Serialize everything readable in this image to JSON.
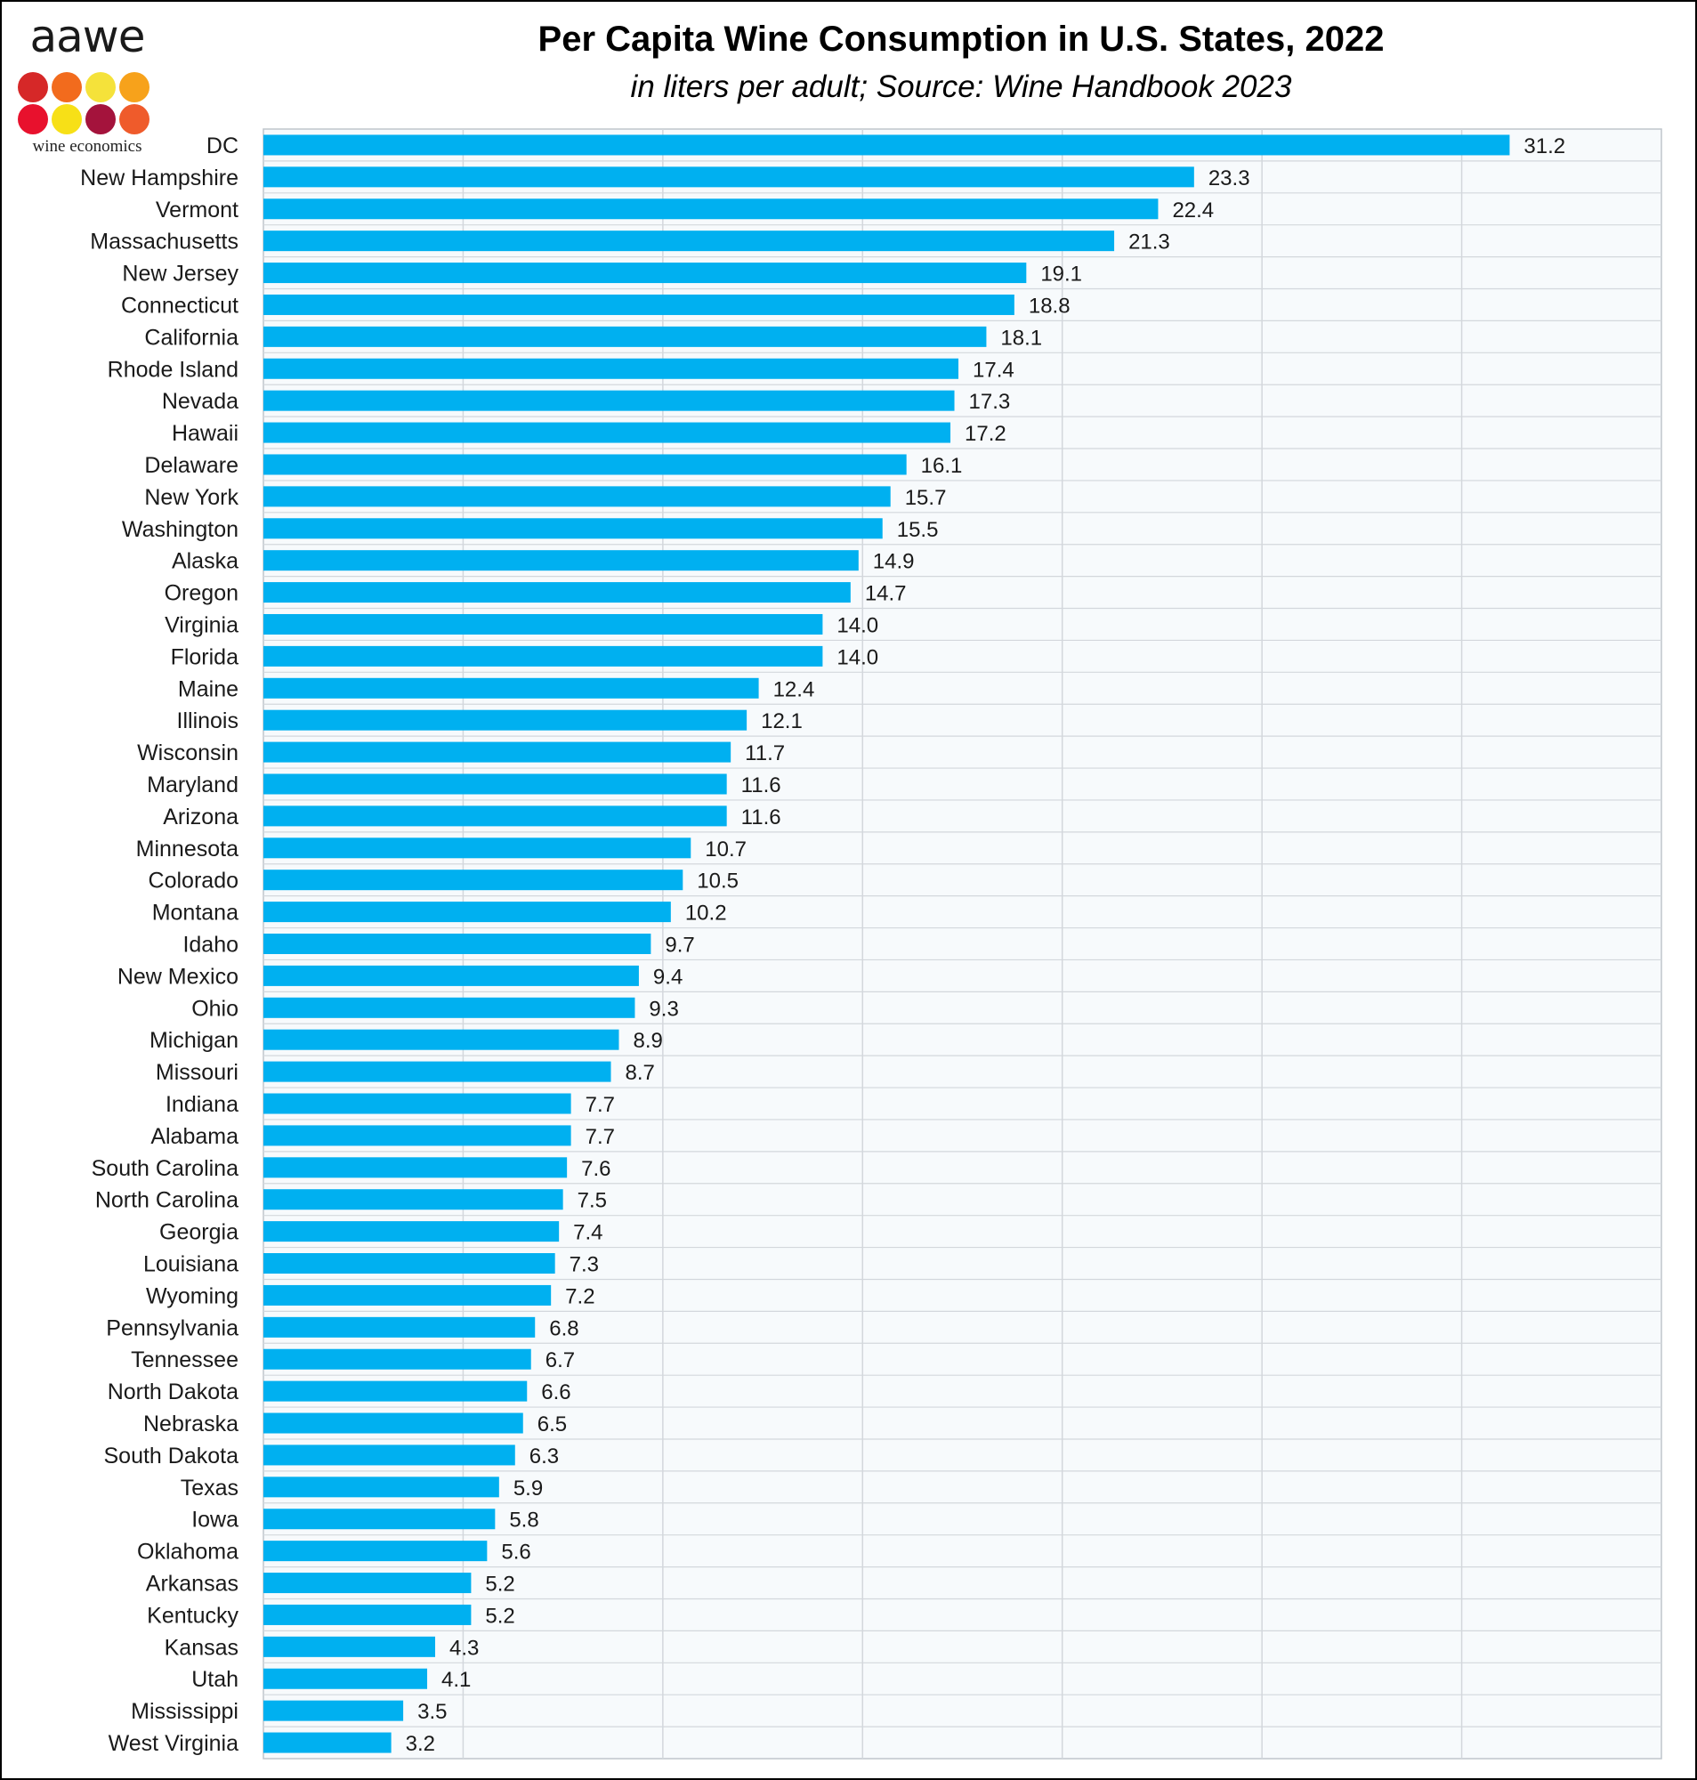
{
  "logo": {
    "wordmark": "aawe",
    "tagline": "wine economics",
    "dot_colors": [
      "#d62828",
      "#f26b1d",
      "#f5e23a",
      "#f7a21b",
      "#e8112d",
      "#f7e017",
      "#a4133c",
      "#ef5b2b"
    ]
  },
  "colors": {
    "bar": "#00b0f0",
    "plot_bg": "#f7fafc",
    "grid": "#d3d7dc",
    "plot_border": "#bfc5cc"
  },
  "chart_data": {
    "type": "bar",
    "orientation": "horizontal",
    "title": "Per Capita Wine Consumption in U.S. States, 2022",
    "subtitle": "in liters per adult; Source: Wine Handbook 2023",
    "xlabel": "",
    "ylabel": "",
    "xlim": [
      0,
      35
    ],
    "grid": true,
    "legend": "none",
    "categories": [
      "DC",
      "New Hampshire",
      "Vermont",
      "Massachusetts",
      "New Jersey",
      "Connecticut",
      "California",
      "Rhode Island",
      "Nevada",
      "Hawaii",
      "Delaware",
      "New York",
      "Washington",
      "Alaska",
      "Oregon",
      "Virginia",
      "Florida",
      "Maine",
      "Illinois",
      "Wisconsin",
      "Maryland",
      "Arizona",
      "Minnesota",
      "Colorado",
      "Montana",
      "Idaho",
      "New Mexico",
      "Ohio",
      "Michigan",
      "Missouri",
      "Indiana",
      "Alabama",
      "South Carolina",
      "North Carolina",
      "Georgia",
      "Louisiana",
      "Wyoming",
      "Pennsylvania",
      "Tennessee",
      "North Dakota",
      "Nebraska",
      "South Dakota",
      "Texas",
      "Iowa",
      "Oklahoma",
      "Arkansas",
      "Kentucky",
      "Kansas",
      "Utah",
      "Mississippi",
      "West Virginia"
    ],
    "values": [
      31.2,
      23.3,
      22.4,
      21.3,
      19.1,
      18.8,
      18.1,
      17.4,
      17.3,
      17.2,
      16.1,
      15.7,
      15.5,
      14.9,
      14.7,
      14.0,
      14.0,
      12.4,
      12.1,
      11.7,
      11.6,
      11.6,
      10.7,
      10.5,
      10.2,
      9.7,
      9.4,
      9.3,
      8.9,
      8.7,
      7.7,
      7.7,
      7.6,
      7.5,
      7.4,
      7.3,
      7.2,
      6.8,
      6.7,
      6.6,
      6.5,
      6.3,
      5.9,
      5.8,
      5.6,
      5.2,
      5.2,
      4.3,
      4.1,
      3.5,
      3.2
    ],
    "data_labels": [
      "31.2",
      "23.3",
      "22.4",
      "21.3",
      "19.1",
      "18.8",
      "18.1",
      "17.4",
      "17.3",
      "17.2",
      "16.1",
      "15.7",
      "15.5",
      "14.9",
      "14.7",
      "14.0",
      "14.0",
      "12.4",
      "12.1",
      "11.7",
      "11.6",
      "11.6",
      "10.7",
      "10.5",
      "10.2",
      "9.7",
      "9.4",
      "9.3",
      "8.9",
      "8.7",
      "7.7",
      "7.7",
      "7.6",
      "7.5",
      "7.4",
      "7.3",
      "7.2",
      "6.8",
      "6.7",
      "6.6",
      "6.5",
      "6.3",
      "5.9",
      "5.8",
      "5.6",
      "5.2",
      "5.2",
      "4.3",
      "4.1",
      "3.5",
      "3.2"
    ]
  }
}
